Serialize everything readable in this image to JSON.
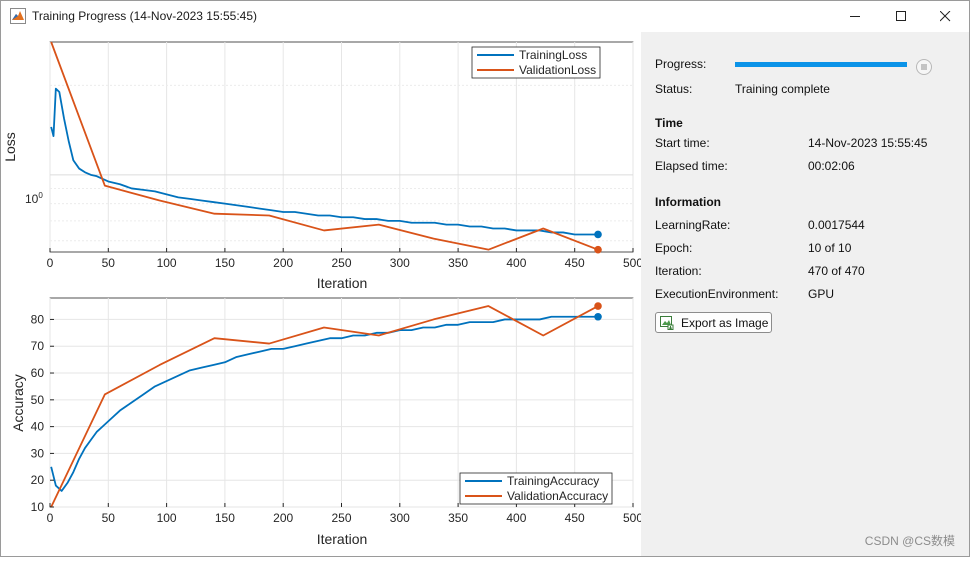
{
  "window": {
    "title": "Training Progress (14-Nov-2023 15:55:45)",
    "icons": [
      "matlab-logo-icon",
      "minimize-icon",
      "maximize-icon",
      "close-icon"
    ]
  },
  "loss_chart": {
    "ylabel": "Loss",
    "xlabel": "Iteration",
    "ytick": "10",
    "ytick_exp": "0",
    "xticks": [
      "0",
      "50",
      "100",
      "150",
      "200",
      "250",
      "300",
      "350",
      "400",
      "450",
      "500"
    ],
    "legend": [
      "TrainingLoss",
      "ValidationLoss"
    ]
  },
  "acc_chart": {
    "ylabel": "Accuracy",
    "xlabel": "Iteration",
    "yticks": [
      "10",
      "20",
      "30",
      "40",
      "50",
      "60",
      "70",
      "80"
    ],
    "xticks": [
      "0",
      "50",
      "100",
      "150",
      "200",
      "250",
      "300",
      "350",
      "400",
      "450",
      "500"
    ],
    "legend": [
      "TrainingAccuracy",
      "ValidationAccuracy"
    ]
  },
  "chart_data": [
    {
      "type": "line",
      "xlabel": "Iteration",
      "ylabel": "Loss",
      "xlim": [
        0,
        500
      ],
      "yscale": "log",
      "ylim": [
        0.55,
        2.8
      ],
      "grid": true,
      "legend_position": "top-right",
      "series": [
        {
          "name": "TrainingLoss",
          "color": "#0072bd",
          "x": [
            1,
            3,
            5,
            8,
            12,
            16,
            20,
            25,
            30,
            35,
            40,
            45,
            50,
            55,
            60,
            70,
            80,
            90,
            100,
            110,
            120,
            130,
            140,
            150,
            160,
            170,
            180,
            190,
            200,
            210,
            220,
            230,
            240,
            250,
            260,
            270,
            280,
            290,
            300,
            310,
            320,
            330,
            340,
            350,
            360,
            370,
            380,
            390,
            400,
            410,
            420,
            430,
            440,
            450,
            460,
            470
          ],
          "y": [
            1.45,
            1.35,
            1.95,
            1.9,
            1.55,
            1.3,
            1.12,
            1.05,
            1.02,
            1.0,
            0.99,
            0.97,
            0.95,
            0.94,
            0.93,
            0.9,
            0.89,
            0.88,
            0.86,
            0.84,
            0.83,
            0.82,
            0.81,
            0.8,
            0.79,
            0.78,
            0.77,
            0.76,
            0.75,
            0.75,
            0.74,
            0.73,
            0.73,
            0.72,
            0.72,
            0.71,
            0.71,
            0.7,
            0.7,
            0.69,
            0.69,
            0.69,
            0.68,
            0.68,
            0.67,
            0.67,
            0.66,
            0.66,
            0.65,
            0.65,
            0.65,
            0.64,
            0.64,
            0.63,
            0.63,
            0.63
          ]
        },
        {
          "name": "ValidationLoss",
          "color": "#d95319",
          "x": [
            1,
            47,
            94,
            141,
            188,
            235,
            282,
            329,
            376,
            423,
            470
          ],
          "y": [
            2.8,
            0.92,
            0.82,
            0.74,
            0.73,
            0.65,
            0.68,
            0.61,
            0.56,
            0.66,
            0.56
          ]
        }
      ]
    },
    {
      "type": "line",
      "xlabel": "Iteration",
      "ylabel": "Accuracy",
      "xlim": [
        0,
        500
      ],
      "ylim": [
        10,
        88
      ],
      "grid": true,
      "legend_position": "bottom-right",
      "series": [
        {
          "name": "TrainingAccuracy",
          "color": "#0072bd",
          "x": [
            1,
            5,
            10,
            15,
            20,
            25,
            30,
            35,
            40,
            45,
            50,
            60,
            70,
            80,
            90,
            100,
            110,
            120,
            130,
            140,
            150,
            160,
            170,
            180,
            190,
            200,
            210,
            220,
            230,
            240,
            250,
            260,
            270,
            280,
            290,
            300,
            310,
            320,
            330,
            340,
            350,
            360,
            370,
            380,
            390,
            400,
            410,
            420,
            430,
            440,
            450,
            460,
            470
          ],
          "y": [
            25,
            18,
            16,
            19,
            23,
            28,
            32,
            35,
            38,
            40,
            42,
            46,
            49,
            52,
            55,
            57,
            59,
            61,
            62,
            63,
            64,
            66,
            67,
            68,
            69,
            69,
            70,
            71,
            72,
            73,
            73,
            74,
            74,
            75,
            75,
            76,
            76,
            77,
            77,
            78,
            78,
            79,
            79,
            79,
            80,
            80,
            80,
            80,
            81,
            81,
            81,
            81,
            81
          ]
        },
        {
          "name": "ValidationAccuracy",
          "color": "#d95319",
          "x": [
            1,
            47,
            94,
            141,
            188,
            235,
            282,
            329,
            376,
            423,
            470
          ],
          "y": [
            10,
            52,
            63,
            73,
            71,
            77,
            74,
            80,
            85,
            74,
            85
          ]
        }
      ]
    }
  ],
  "info": {
    "progress_label": "Progress:",
    "progress_fraction": 1.0,
    "status_label": "Status:",
    "status_value": "Training complete",
    "time_heading": "Time",
    "start_label": "Start time:",
    "start_value": "14-Nov-2023 15:55:45",
    "elapsed_label": "Elapsed time:",
    "elapsed_value": "00:02:06",
    "information_heading": "Information",
    "lr_label": "LearningRate:",
    "lr_value": "0.0017544",
    "epoch_label": "Epoch:",
    "epoch_value": "10 of 10",
    "iteration_label": "Iteration:",
    "iteration_value": "470 of 470",
    "env_label": "ExecutionEnvironment:",
    "env_value": "GPU",
    "export_button": "Export as Image"
  },
  "watermark": "CSDN @CS数模"
}
